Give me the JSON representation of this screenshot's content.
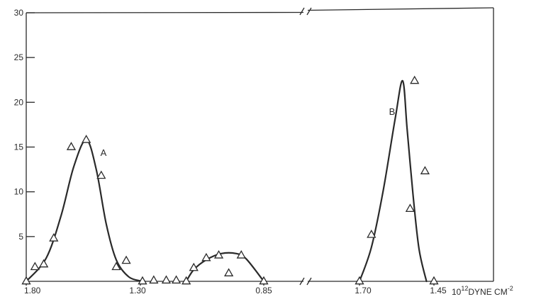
{
  "chart_data": {
    "type": "line",
    "y_ticks": [
      "30",
      "25",
      "20",
      "15",
      "10",
      "5"
    ],
    "ylim": [
      0,
      30
    ],
    "x_tick_labels": [
      "1.80",
      "1.30",
      "0.85",
      "1.70",
      "1.45"
    ],
    "x_unit_label": {
      "prefix": "10",
      "exponent": "12",
      "main": "DYNE  CM",
      "suffix_exp": "-2"
    },
    "axis_break": true,
    "panels": [
      {
        "x_range": [
          1.8,
          0.85
        ],
        "series": [
          {
            "name": "A",
            "markers": [
              {
                "x": 1.8,
                "y": 0
              },
              {
                "x": 1.765,
                "y": 1.6
              },
              {
                "x": 1.73,
                "y": 1.9
              },
              {
                "x": 1.69,
                "y": 4.8
              },
              {
                "x": 1.62,
                "y": 15
              },
              {
                "x": 1.56,
                "y": 15.8
              },
              {
                "x": 1.5,
                "y": 11.8
              },
              {
                "x": 1.44,
                "y": 1.6
              },
              {
                "x": 1.4,
                "y": 2.3
              },
              {
                "x": 1.335,
                "y": 0
              },
              {
                "x": 1.29,
                "y": 0.1
              },
              {
                "x": 1.24,
                "y": 0.1
              },
              {
                "x": 1.2,
                "y": 0.1
              }
            ],
            "curve": [
              {
                "x": 1.8,
                "y": 0
              },
              {
                "x": 1.72,
                "y": 2.6
              },
              {
                "x": 1.66,
                "y": 7.4
              },
              {
                "x": 1.61,
                "y": 12.8
              },
              {
                "x": 1.56,
                "y": 15.8
              },
              {
                "x": 1.52,
                "y": 12.5
              },
              {
                "x": 1.48,
                "y": 6.4
              },
              {
                "x": 1.44,
                "y": 2.4
              },
              {
                "x": 1.39,
                "y": 0.5
              },
              {
                "x": 1.335,
                "y": 0
              }
            ]
          },
          {
            "name": "",
            "markers": [
              {
                "x": 1.16,
                "y": 0
              },
              {
                "x": 1.13,
                "y": 1.5
              },
              {
                "x": 1.08,
                "y": 2.6
              },
              {
                "x": 1.03,
                "y": 2.9
              },
              {
                "x": 0.99,
                "y": 0.9
              },
              {
                "x": 0.94,
                "y": 2.9
              },
              {
                "x": 0.85,
                "y": 0
              }
            ],
            "curve": [
              {
                "x": 1.16,
                "y": 0
              },
              {
                "x": 1.13,
                "y": 1.3
              },
              {
                "x": 1.08,
                "y": 2.4
              },
              {
                "x": 1.02,
                "y": 3.1
              },
              {
                "x": 0.96,
                "y": 3.1
              },
              {
                "x": 0.92,
                "y": 2.5
              },
              {
                "x": 0.85,
                "y": 0
              }
            ]
          }
        ]
      },
      {
        "x_range": [
          1.7,
          1.45
        ],
        "series": [
          {
            "name": "B",
            "markers": [
              {
                "x": 1.7,
                "y": 0
              },
              {
                "x": 1.66,
                "y": 5.2
              },
              {
                "x": 1.53,
                "y": 8.1
              },
              {
                "x": 1.515,
                "y": 22.4
              },
              {
                "x": 1.48,
                "y": 12.3
              },
              {
                "x": 1.45,
                "y": 0
              }
            ],
            "curve": [
              {
                "x": 1.7,
                "y": 0
              },
              {
                "x": 1.66,
                "y": 3.8
              },
              {
                "x": 1.62,
                "y": 10.2
              },
              {
                "x": 1.58,
                "y": 18.2
              },
              {
                "x": 1.555,
                "y": 22.4
              },
              {
                "x": 1.54,
                "y": 17.0
              },
              {
                "x": 1.52,
                "y": 9.6
              },
              {
                "x": 1.5,
                "y": 3.6
              },
              {
                "x": 1.475,
                "y": 0
              }
            ]
          }
        ]
      }
    ]
  }
}
